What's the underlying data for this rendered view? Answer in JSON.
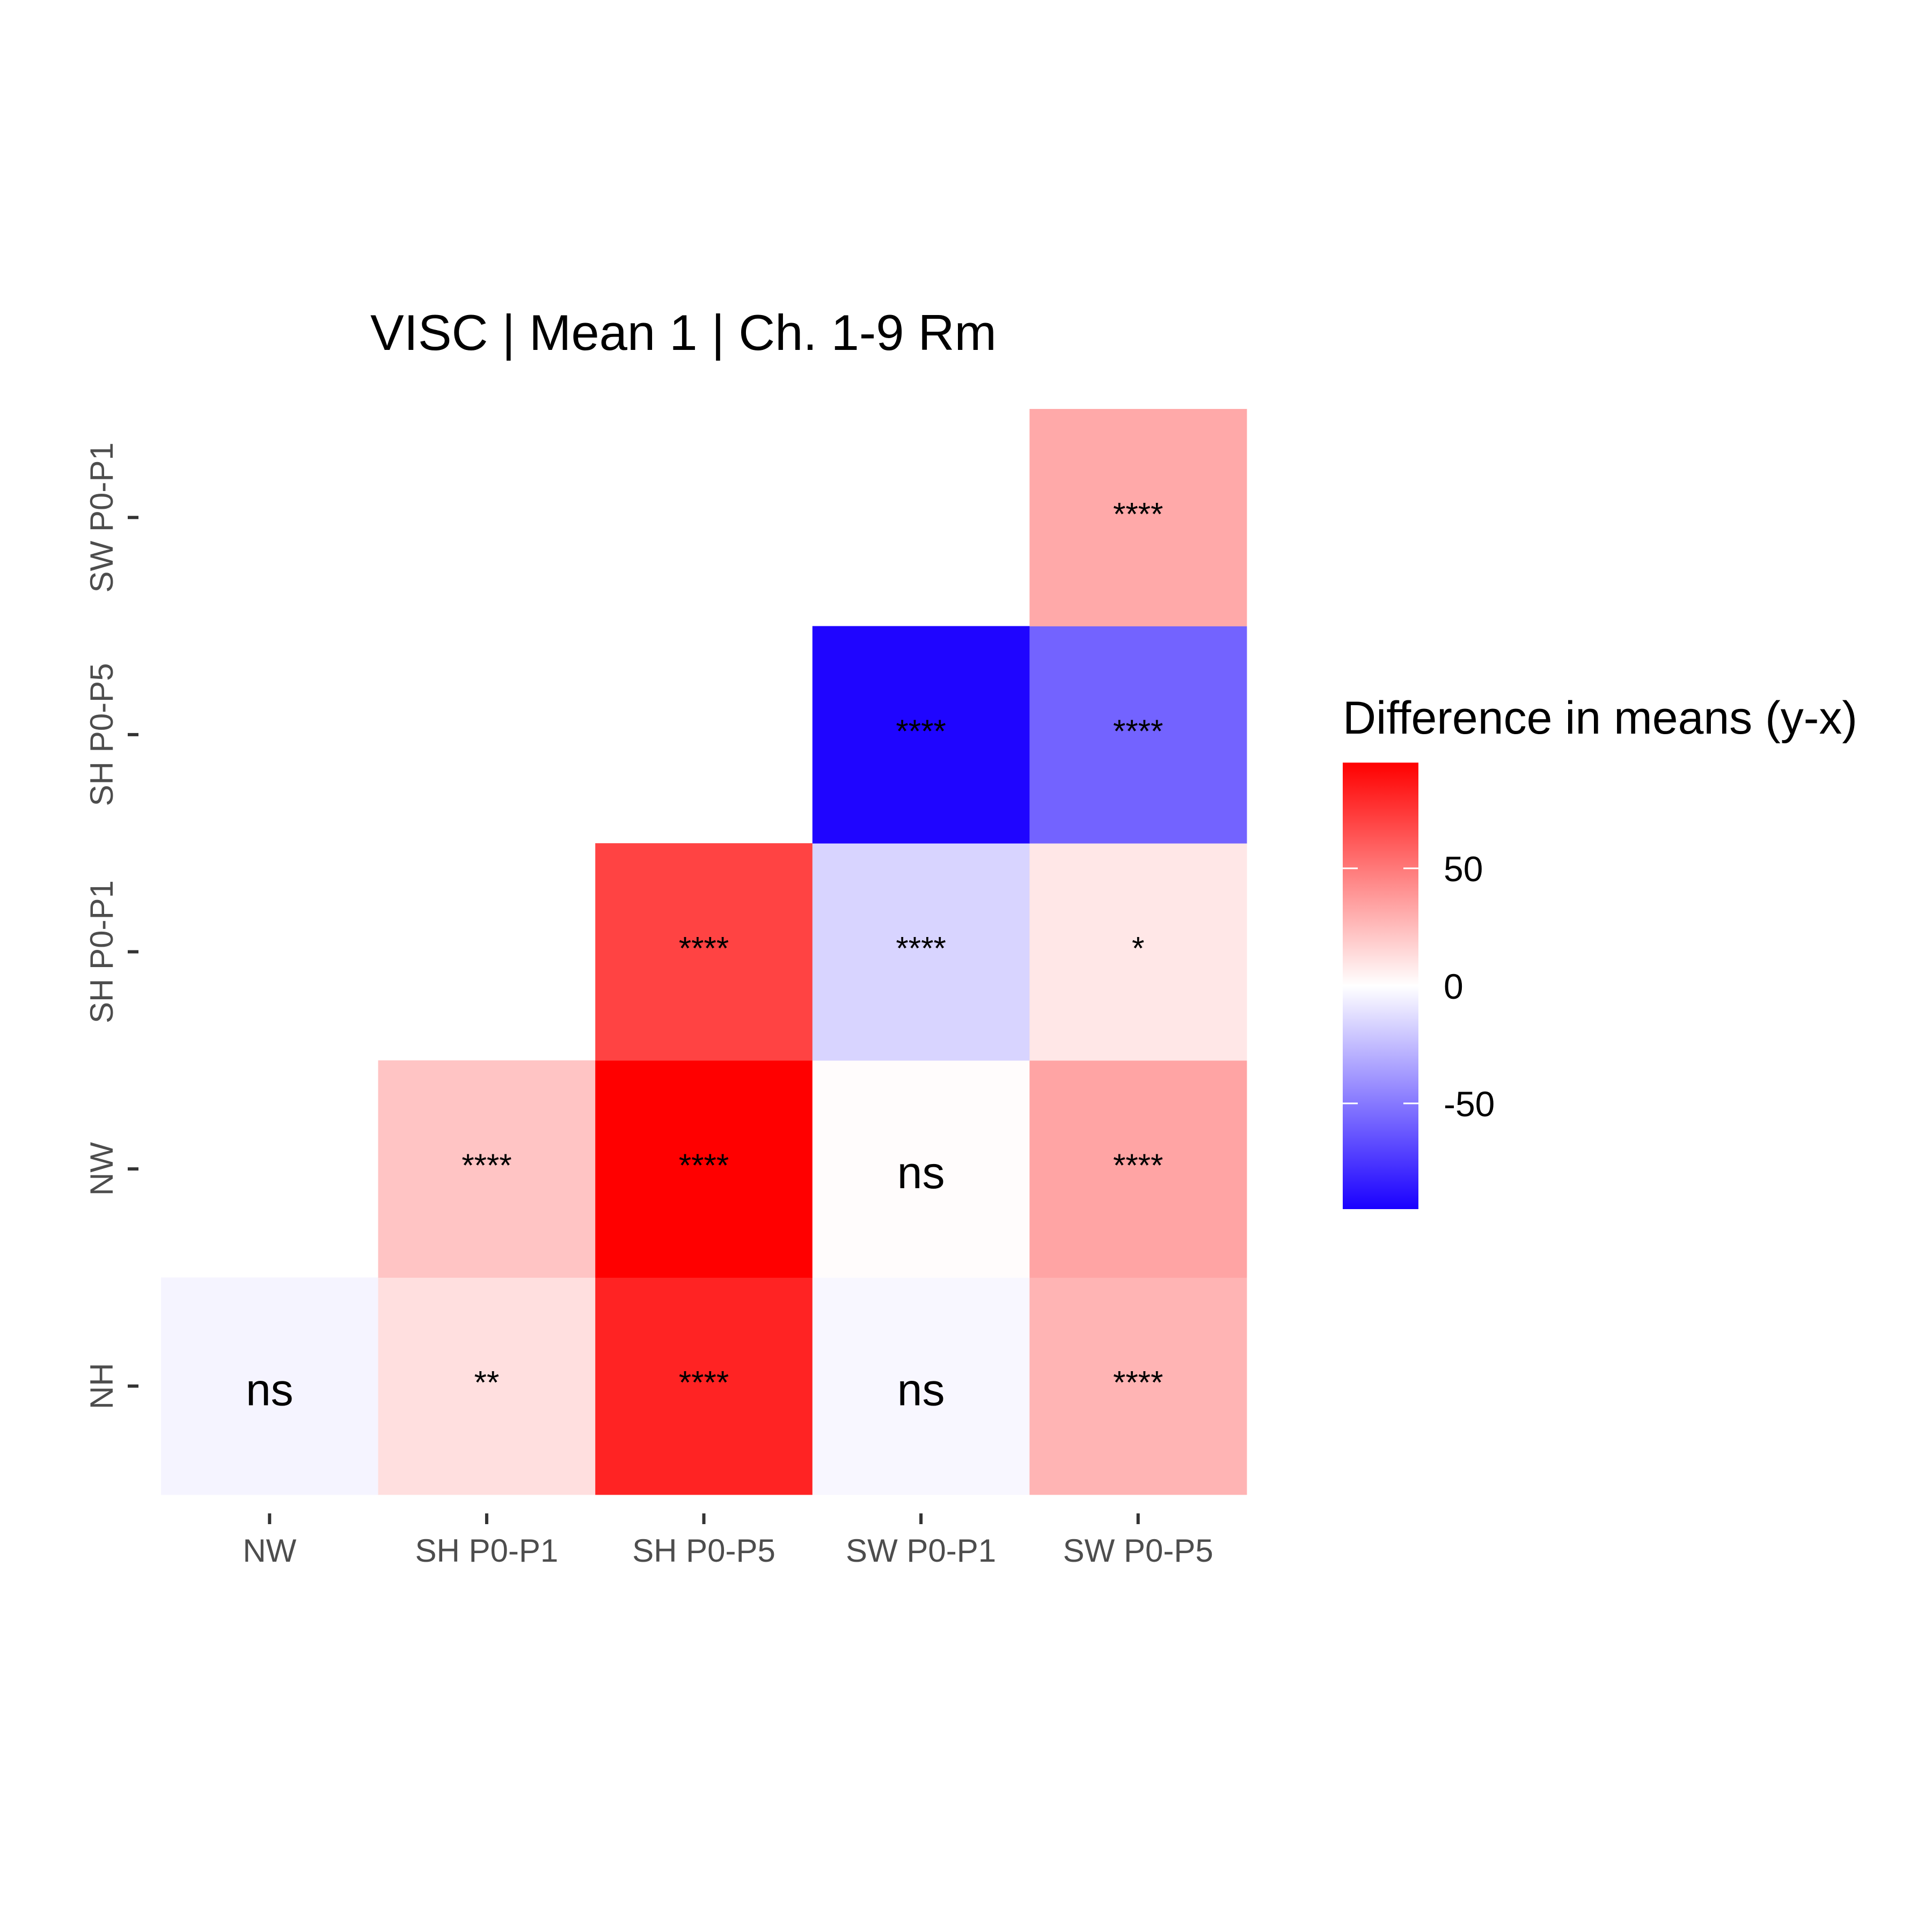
{
  "chart_data": {
    "type": "heatmap",
    "title": "VISC | Mean 1 | Ch. 1-9 Rm",
    "x_categories": [
      "NW",
      "SH P0-P1",
      "SH P0-P5",
      "SW P0-P1",
      "SW P0-P5"
    ],
    "y_categories": [
      "NH",
      "NW",
      "SH P0-P1",
      "SH P0-P5",
      "SW P0-P1"
    ],
    "cells": [
      {
        "x": "NW",
        "y": "NH",
        "value": -4,
        "label": "ns"
      },
      {
        "x": "SH P0-P1",
        "y": "NH",
        "value": 12,
        "label": "**"
      },
      {
        "x": "SH P0-P5",
        "y": "NH",
        "value": 82,
        "label": "****"
      },
      {
        "x": "SW P0-P1",
        "y": "NH",
        "value": -3,
        "label": "ns"
      },
      {
        "x": "SW P0-P5",
        "y": "NH",
        "value": 28,
        "label": "****"
      },
      {
        "x": "SH P0-P1",
        "y": "NW",
        "value": 22,
        "label": "****"
      },
      {
        "x": "SH P0-P5",
        "y": "NW",
        "value": 95,
        "label": "****"
      },
      {
        "x": "SW P0-P1",
        "y": "NW",
        "value": 1,
        "label": "ns"
      },
      {
        "x": "SW P0-P5",
        "y": "NW",
        "value": 34,
        "label": "****"
      },
      {
        "x": "SH P0-P5",
        "y": "SH P0-P1",
        "value": 70,
        "label": "****"
      },
      {
        "x": "SW P0-P1",
        "y": "SH P0-P1",
        "value": -16,
        "label": "****"
      },
      {
        "x": "SW P0-P5",
        "y": "SH P0-P1",
        "value": 9,
        "label": "*"
      },
      {
        "x": "SW P0-P1",
        "y": "SH P0-P5",
        "value": -93,
        "label": "****"
      },
      {
        "x": "SW P0-P5",
        "y": "SH P0-P5",
        "value": -58,
        "label": "****"
      },
      {
        "x": "SW P0-P5",
        "y": "SW P0-P1",
        "value": 32,
        "label": "****"
      }
    ],
    "legend": {
      "title": "Difference in means (y-x)",
      "ticks": [
        50,
        0,
        -50
      ],
      "tick_labels": [
        "50",
        "0",
        "-50"
      ],
      "range": [
        -95,
        95
      ],
      "placement": "right"
    },
    "colors": {
      "low": "#1a00ff",
      "mid": "#ffffff",
      "high": "#ff0000"
    },
    "grid": false
  }
}
